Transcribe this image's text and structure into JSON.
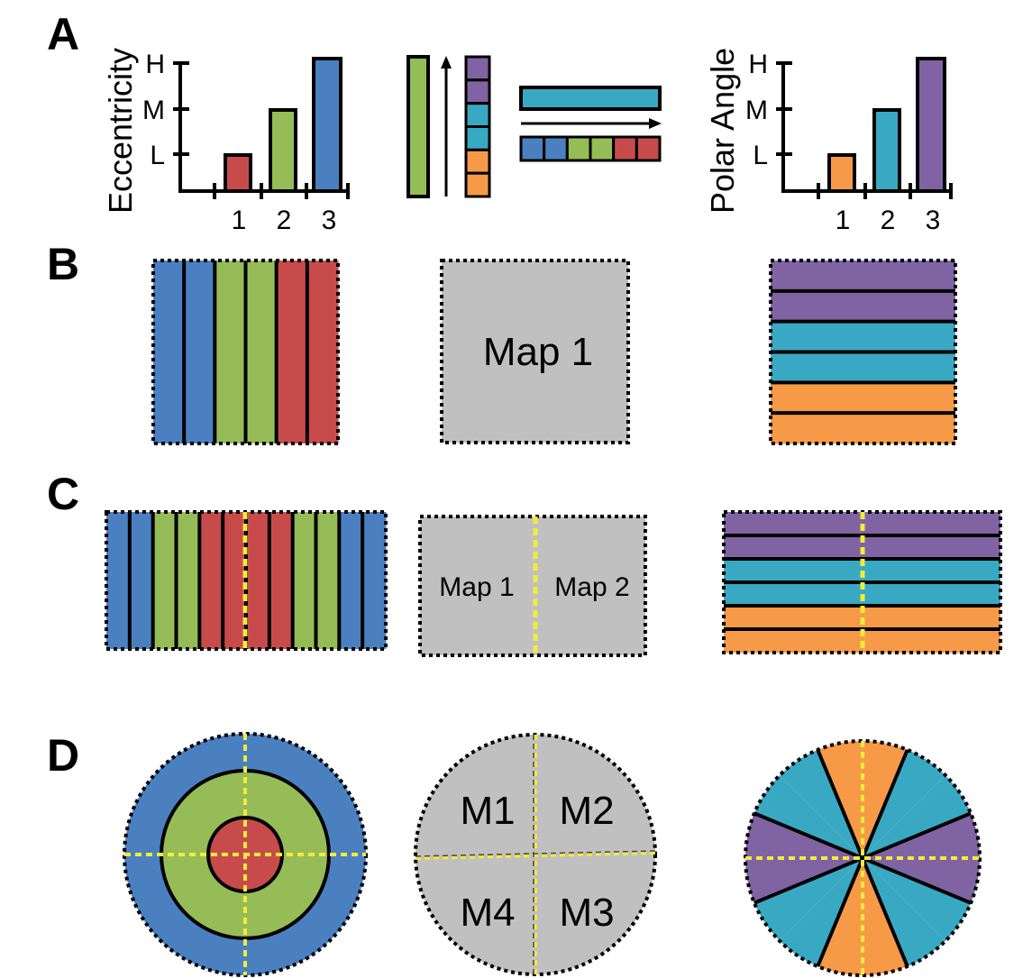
{
  "colors": {
    "red": "#c84b4b",
    "green": "#96bc57",
    "blue": "#4a80c0",
    "purple": "#8063a3",
    "cyan": "#39a9c3",
    "orange": "#f69a48",
    "gray": "#c0c0c0",
    "yellow": "#f3eb3a",
    "black": "#000000"
  },
  "panels": {
    "a": "A",
    "b": "B",
    "c": "C",
    "d": "D"
  },
  "eccentricity_chart": {
    "ylabel": "Eccentricity",
    "yticks": [
      "L",
      "M",
      "H"
    ],
    "xticks": [
      "1",
      "2",
      "3"
    ],
    "bar_colors": [
      "red",
      "green",
      "blue"
    ]
  },
  "polar_chart": {
    "ylabel": "Polar Angle",
    "yticks": [
      "L",
      "M",
      "H"
    ],
    "xticks": [
      "1",
      "2",
      "3"
    ],
    "bar_colors": [
      "orange",
      "cyan",
      "purple"
    ]
  },
  "legend_a": {
    "vertical_stack_colors": [
      "purple",
      "purple",
      "cyan",
      "cyan",
      "orange",
      "orange"
    ],
    "horizontal_stack_colors": [
      "blue",
      "blue",
      "green",
      "green",
      "red",
      "red"
    ]
  },
  "row_b": {
    "left_stripes": [
      "blue",
      "blue",
      "green",
      "green",
      "red",
      "red"
    ],
    "center_label": "Map 1",
    "right_stripes": [
      "purple",
      "purple",
      "cyan",
      "cyan",
      "orange",
      "orange"
    ]
  },
  "row_c": {
    "left_stripes": [
      "blue",
      "blue",
      "green",
      "green",
      "red",
      "red",
      "red",
      "red",
      "green",
      "green",
      "blue",
      "blue"
    ],
    "center_labels": [
      "Map 1",
      "Map 2"
    ],
    "right_stripes": [
      "purple",
      "purple",
      "cyan",
      "cyan",
      "orange",
      "orange"
    ]
  },
  "row_d": {
    "rings": [
      "blue",
      "green",
      "red"
    ],
    "quadrant_labels": [
      "M1",
      "M2",
      "M4",
      "M3"
    ],
    "wedges": [
      "orange",
      "cyan",
      "cyan",
      "purple",
      "purple",
      "cyan",
      "cyan",
      "orange",
      "orange",
      "cyan",
      "cyan",
      "purple",
      "purple",
      "cyan",
      "cyan",
      "orange"
    ]
  }
}
